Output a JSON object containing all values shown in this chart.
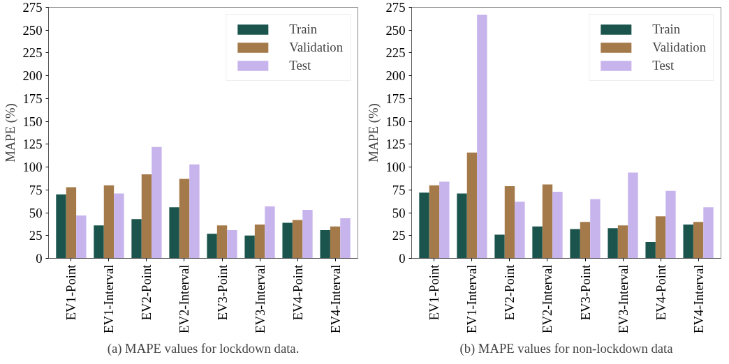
{
  "chart_data": [
    {
      "type": "bar",
      "ylabel": "MAPE (%)",
      "categories": [
        "EV1-Point",
        "EV1-Interval",
        "EV2-Point",
        "EV2-Interval",
        "EV3-Point",
        "EV3-Interval",
        "EV4-Point",
        "EV4-Interval"
      ],
      "series": [
        {
          "name": "Train",
          "color": "#1a544c",
          "values": [
            70,
            36,
            43,
            56,
            27,
            25,
            39,
            31
          ]
        },
        {
          "name": "Validation",
          "color": "#a47a4a",
          "values": [
            78,
            80,
            92,
            87,
            36,
            37,
            42,
            35
          ]
        },
        {
          "name": "Test",
          "color": "#c8b4ec",
          "values": [
            47,
            71,
            122,
            103,
            31,
            57,
            53,
            44
          ]
        }
      ],
      "ylim": [
        0,
        275
      ],
      "yticks": [
        0,
        25,
        50,
        75,
        100,
        125,
        150,
        175,
        200,
        225,
        250,
        275
      ],
      "grid": false,
      "legend": "top right",
      "annotations": [
        "(a) MAPE values for lockdown data."
      ]
    },
    {
      "type": "bar",
      "ylabel": "MAPE (%)",
      "categories": [
        "EV1-Point",
        "EV1-Interval",
        "EV2-Point",
        "EV2-Interval",
        "EV3-Point",
        "EV3-Interval",
        "EV4-Point",
        "EV4-Interval"
      ],
      "series": [
        {
          "name": "Train",
          "color": "#1a544c",
          "values": [
            72,
            71,
            26,
            35,
            32,
            33,
            18,
            37
          ]
        },
        {
          "name": "Validation",
          "color": "#a47a4a",
          "values": [
            80,
            116,
            79,
            81,
            40,
            36,
            46,
            40
          ]
        },
        {
          "name": "Test",
          "color": "#c8b4ec",
          "values": [
            84,
            267,
            62,
            73,
            65,
            94,
            74,
            56
          ]
        }
      ],
      "ylim": [
        0,
        275
      ],
      "yticks": [
        0,
        25,
        50,
        75,
        100,
        125,
        150,
        175,
        200,
        225,
        250,
        275
      ],
      "grid": false,
      "legend": "top right",
      "annotations": [
        "(b) MAPE values for non-lockdown data"
      ]
    }
  ]
}
